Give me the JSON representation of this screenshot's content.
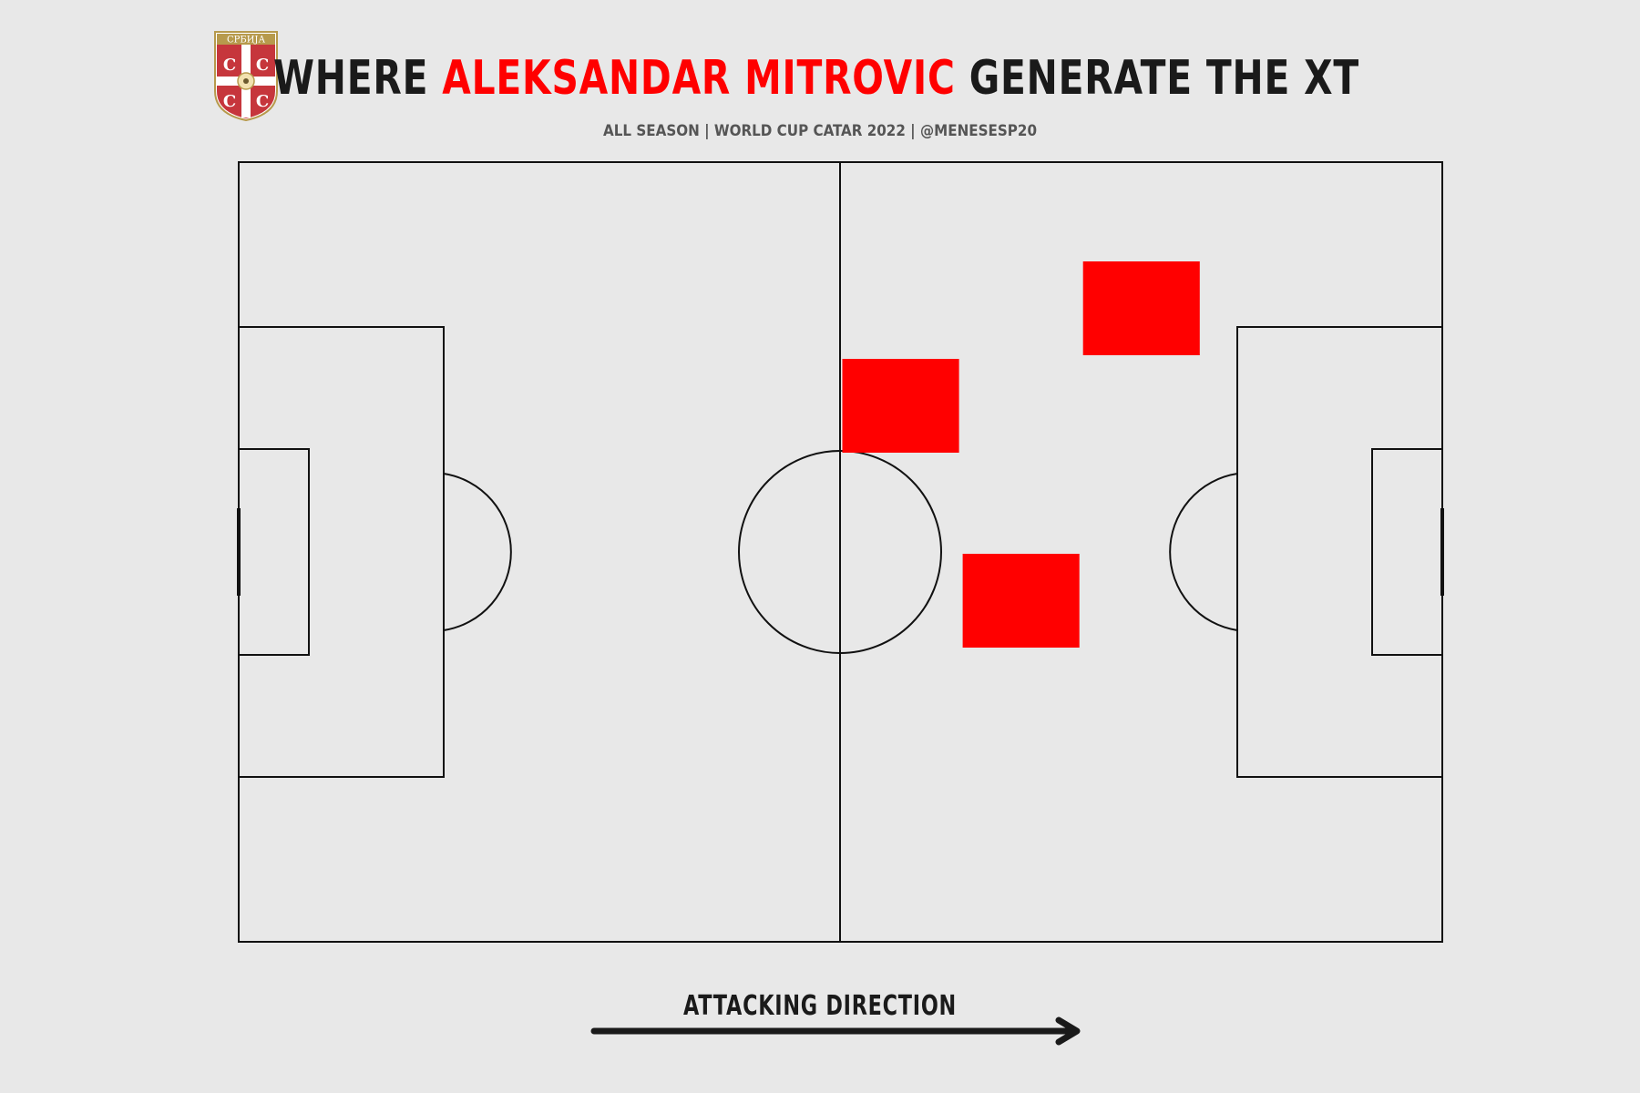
{
  "title": {
    "prefix": "WHERE ",
    "player": "ALEKSANDAR MITROVIC",
    "suffix": " GENERATE THE XT"
  },
  "subtitle": "ALL SEASON | WORLD CUP CATAR 2022 | @MENESESP20",
  "crest": {
    "top_text": "СРБИЈА",
    "icon": "serbia-federation-crest-icon"
  },
  "direction_label": "ATTACKING DIRECTION",
  "colors": {
    "background": "#e8e8e8",
    "lines": "#111111",
    "highlight": "#ff0000",
    "title_dark": "#1a1a1a",
    "subtitle": "#555555",
    "crest_red": "#c6363c",
    "crest_gold": "#b79a4c"
  },
  "chart_data": {
    "type": "heatmap",
    "pitch": {
      "length": 105,
      "width": 68
    },
    "bins": {
      "x_count": 10,
      "y_count": 8
    },
    "highlighted_cells": [
      {
        "x_bin": 7,
        "y_bin": 1,
        "value": 1
      },
      {
        "x_bin": 5,
        "y_bin": 2,
        "value": 1
      },
      {
        "x_bin": 6,
        "y_bin": 4,
        "value": 1
      }
    ]
  }
}
